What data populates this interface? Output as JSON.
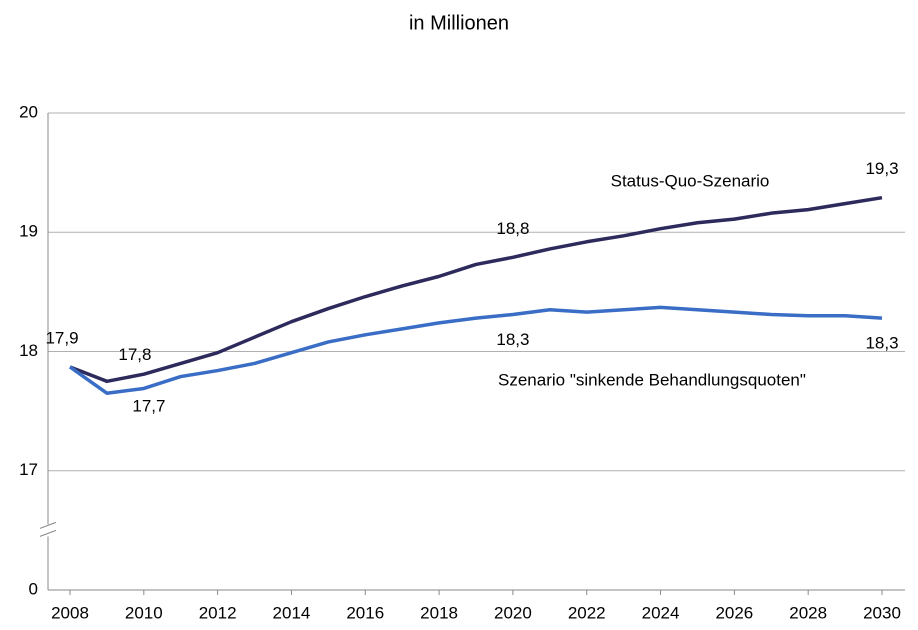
{
  "chart_data": {
    "type": "line",
    "title": "in Millionen",
    "x": [
      2008,
      2009,
      2010,
      2011,
      2012,
      2013,
      2014,
      2015,
      2016,
      2017,
      2018,
      2019,
      2020,
      2021,
      2022,
      2023,
      2024,
      2025,
      2026,
      2027,
      2028,
      2029,
      2030
    ],
    "series": [
      {
        "name": "Status-Quo-Szenario",
        "color": "#2d2a5c",
        "values": [
          17.87,
          17.75,
          17.81,
          17.9,
          17.99,
          18.12,
          18.25,
          18.36,
          18.46,
          18.55,
          18.63,
          18.73,
          18.79,
          18.86,
          18.92,
          18.97,
          19.03,
          19.08,
          19.11,
          19.16,
          19.19,
          19.24,
          19.29
        ],
        "value_labels": [
          "17,9",
          "17,8",
          null,
          null,
          null,
          null,
          null,
          null,
          null,
          null,
          null,
          null,
          "18,8",
          null,
          null,
          null,
          null,
          null,
          null,
          null,
          null,
          null,
          "19,3"
        ]
      },
      {
        "name": "Szenario \"sinkende Behandlungsquoten\"",
        "color": "#3a6dc6",
        "values": [
          17.87,
          17.65,
          17.69,
          17.79,
          17.84,
          17.9,
          17.99,
          18.08,
          18.14,
          18.19,
          18.24,
          18.28,
          18.31,
          18.35,
          18.33,
          18.35,
          18.37,
          18.35,
          18.33,
          18.31,
          18.3,
          18.3,
          18.28
        ],
        "value_labels": [
          null,
          "17,7",
          null,
          null,
          null,
          null,
          null,
          null,
          null,
          null,
          null,
          null,
          "18,3",
          null,
          null,
          null,
          null,
          null,
          null,
          null,
          null,
          null,
          "18,3"
        ]
      }
    ],
    "xlim": [
      2008,
      2030
    ],
    "xticks": [
      2008,
      2010,
      2012,
      2014,
      2016,
      2018,
      2020,
      2022,
      2024,
      2026,
      2028,
      2030
    ],
    "ylim": [
      0,
      20
    ],
    "yticks": [
      0,
      17,
      18,
      19,
      20
    ],
    "axis_break": true,
    "grid": true
  }
}
